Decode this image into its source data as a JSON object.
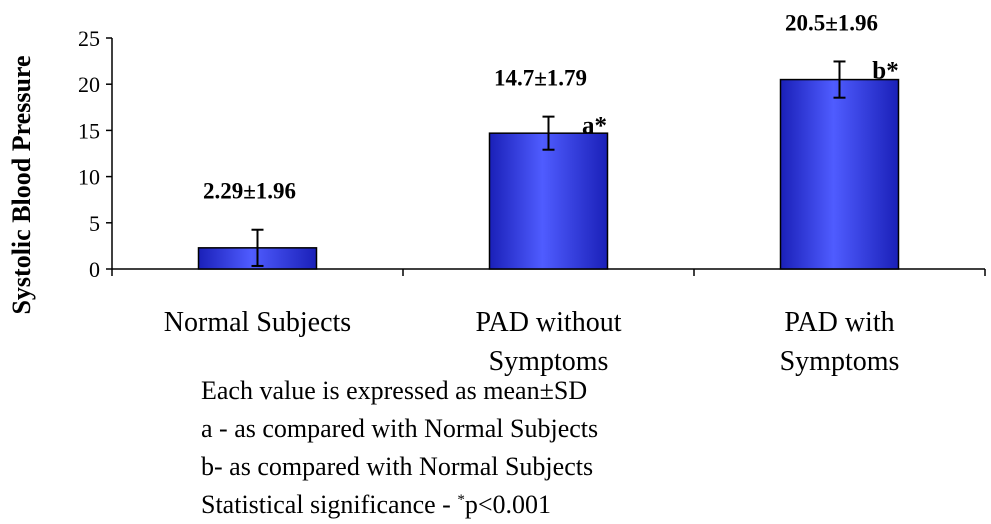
{
  "chart_data": {
    "type": "bar",
    "title": "",
    "xlabel": "",
    "ylabel": "Systolic Blood Pressure",
    "ylim": [
      0,
      25
    ],
    "yticks": [
      0,
      5,
      10,
      15,
      20,
      25
    ],
    "grid": false,
    "legend": "none",
    "bar_color": "#2a35e8",
    "categories": [
      [
        "Normal Subjects"
      ],
      [
        "PAD without",
        "Symptoms"
      ],
      [
        "PAD with",
        "Symptoms"
      ]
    ],
    "values": [
      2.29,
      14.7,
      20.5
    ],
    "errors": [
      1.96,
      1.79,
      1.96
    ],
    "data_labels": [
      "2.29±1.96",
      "14.7±1.79",
      "20.5±1.96"
    ],
    "significance": [
      "",
      "a*",
      "b*"
    ]
  },
  "notes": {
    "line1": "Each value is expressed as mean±SD",
    "line2": "a - as compared with Normal Subjects",
    "line3": "b- as compared with Normal Subjects",
    "line4_prefix": "Statistical significance - ",
    "line4_sup": "*",
    "line4_suffix": "p<0.001"
  }
}
